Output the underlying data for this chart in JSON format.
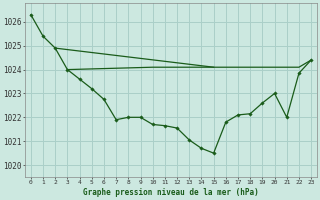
{
  "title": "Graphe pression niveau de la mer (hPa)",
  "background_color": "#cce8e0",
  "grid_color": "#aacfc8",
  "line_color": "#1a5c1a",
  "xlim": [
    -0.5,
    23.5
  ],
  "ylim": [
    1019.5,
    1026.8
  ],
  "yticks": [
    1020,
    1021,
    1022,
    1023,
    1024,
    1025,
    1026
  ],
  "xtick_labels": [
    "0",
    "1",
    "2",
    "3",
    "4",
    "5",
    "6",
    "7",
    "8",
    "9",
    "10",
    "11",
    "12",
    "13",
    "14",
    "15",
    "16",
    "17",
    "18",
    "19",
    "20",
    "21",
    "22",
    "23"
  ],
  "series_main": {
    "x": [
      0,
      1,
      2,
      3,
      4,
      5,
      6,
      7,
      8,
      9,
      10,
      11,
      12,
      13,
      14,
      15,
      16,
      17,
      18,
      19,
      20,
      21,
      22,
      23
    ],
    "y": [
      1026.3,
      1025.4,
      1024.9,
      1024.0,
      1023.6,
      1023.2,
      1022.75,
      1021.9,
      1022.0,
      1022.0,
      1021.7,
      1021.65,
      1021.55,
      1021.05,
      1020.7,
      1020.5,
      1021.8,
      1022.1,
      1022.15,
      1022.6,
      1023.0,
      1022.0,
      1023.85,
      1024.4
    ]
  },
  "series_flat": {
    "x": [
      3,
      10,
      11,
      12,
      13,
      14,
      15,
      16,
      17,
      18,
      19,
      20,
      21,
      22,
      23
    ],
    "y": [
      1024.0,
      1024.1,
      1024.1,
      1024.1,
      1024.1,
      1024.1,
      1024.1,
      1024.1,
      1024.1,
      1024.1,
      1024.1,
      1024.1,
      1024.1,
      1024.1,
      1024.4
    ]
  },
  "series_diag": {
    "x": [
      2,
      15
    ],
    "y": [
      1024.9,
      1024.1
    ]
  }
}
